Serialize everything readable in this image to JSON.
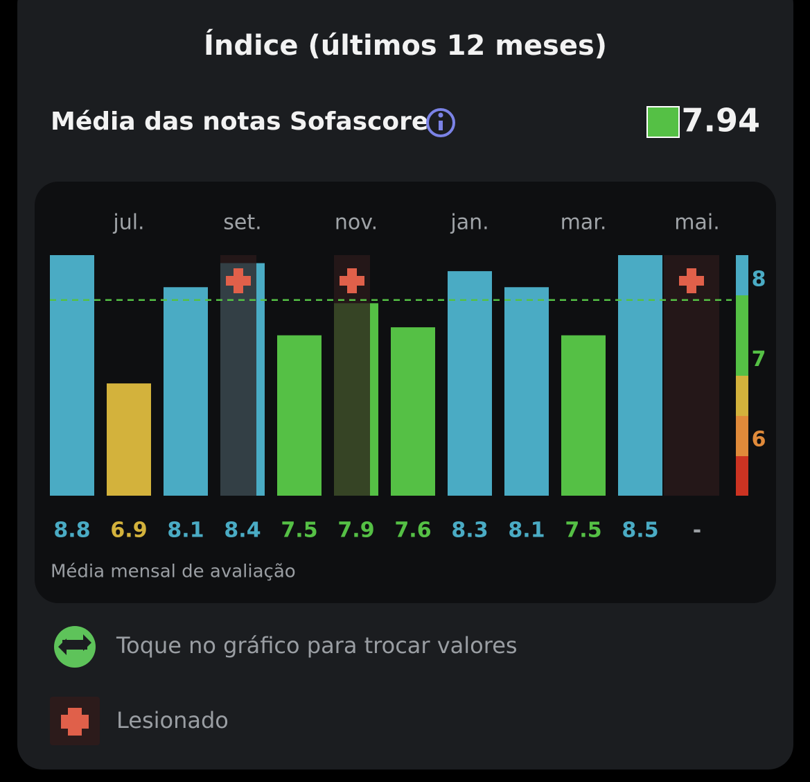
{
  "chart_data": {
    "type": "bar",
    "title": "Índice (últimos 12 meses)",
    "subtitle": "Média das notas Sofascore",
    "average": 7.94,
    "categories": [
      null,
      "jul.",
      null,
      "set.",
      null,
      "nov.",
      null,
      "jan.",
      null,
      "mar.",
      null,
      "mai."
    ],
    "values": [
      8.8,
      6.9,
      8.1,
      8.4,
      7.5,
      7.9,
      7.6,
      8.3,
      8.1,
      7.5,
      8.5,
      null
    ],
    "value_labels": [
      "8.8",
      "6.9",
      "8.1",
      "8.4",
      "7.5",
      "7.9",
      "7.6",
      "8.3",
      "8.1",
      "7.5",
      "8.5",
      "-"
    ],
    "colors": [
      "#4aabc4",
      "#d3b23c",
      "#4aabc4",
      "#4aabc4",
      "#55c045",
      "#55c045",
      "#55c045",
      "#4aabc4",
      "#4aabc4",
      "#55c045",
      "#4aabc4",
      "#9a9ea3"
    ],
    "injured": [
      false,
      false,
      false,
      true,
      false,
      true,
      false,
      false,
      false,
      false,
      false,
      true
    ],
    "ylim": [
      5.5,
      8.5
    ],
    "yticks": [
      6,
      7,
      8
    ],
    "caption": "Média mensal de avaliação",
    "hint": "Toque no gráfico para trocar valores",
    "legend_injured": "Lesionado"
  }
}
